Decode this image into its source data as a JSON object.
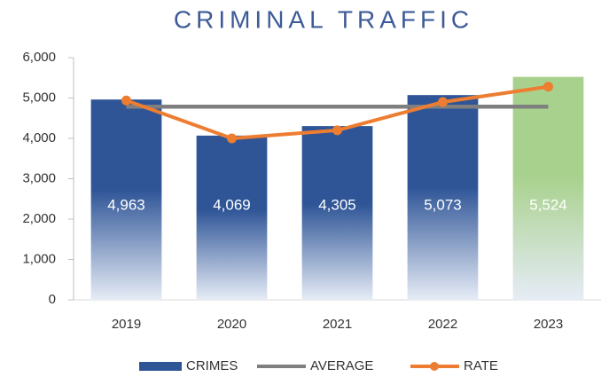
{
  "chart_data": {
    "type": "bar",
    "title": "CRIMINAL TRAFFIC",
    "categories": [
      "2019",
      "2020",
      "2021",
      "2022",
      "2023"
    ],
    "series": [
      {
        "name": "CRIMES",
        "type": "bar",
        "colors": [
          "#2f5597",
          "#2f5597",
          "#2f5597",
          "#2f5597",
          "#a9d18e"
        ],
        "values": [
          4963,
          4069,
          4305,
          5073,
          5524
        ],
        "value_labels": [
          "4,963",
          "4,069",
          "4,305",
          "5,073",
          "5,524"
        ]
      },
      {
        "name": "AVERAGE",
        "type": "line",
        "color": "#7f7f7f",
        "values": [
          4787,
          4787,
          4787,
          4787,
          4787
        ]
      },
      {
        "name": "RATE",
        "type": "line",
        "color": "#ed7d31",
        "markers": true,
        "values": [
          4940,
          4000,
          4200,
          4900,
          5280
        ]
      }
    ],
    "ylim": [
      0,
      6000
    ],
    "yticks": [
      0,
      {
        "value": 1000,
        "label": "1,000"
      },
      {
        "value": 2000,
        "label": "2,000"
      },
      {
        "value": 3000,
        "label": "3,000"
      },
      {
        "value": 4000,
        "label": "4,000"
      },
      {
        "value": 5000,
        "label": "5,000"
      },
      {
        "value": 6000,
        "label": "6,000"
      }
    ],
    "legend": "bottom"
  }
}
